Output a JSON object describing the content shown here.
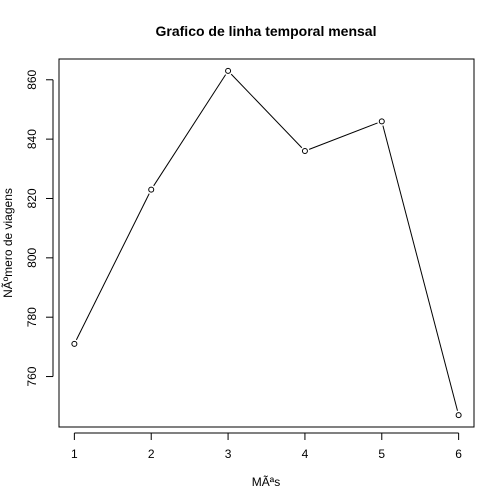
{
  "chart_data": {
    "type": "line",
    "title": "Grafico de linha temporal mensal",
    "xlabel": "MÃªs",
    "ylabel": "NÃºmero de viagens",
    "x": [
      1,
      2,
      3,
      4,
      5,
      6
    ],
    "y": [
      771,
      823,
      863,
      836,
      846,
      747
    ],
    "xticks": [
      "1",
      "2",
      "3",
      "4",
      "5",
      "6"
    ],
    "yticks": [
      "760",
      "780",
      "800",
      "820",
      "840",
      "860"
    ],
    "xlim": [
      0.8,
      6.2
    ],
    "ylim": [
      743,
      867
    ],
    "grid": false,
    "marker": "open-circle",
    "line_color": "#000000"
  }
}
